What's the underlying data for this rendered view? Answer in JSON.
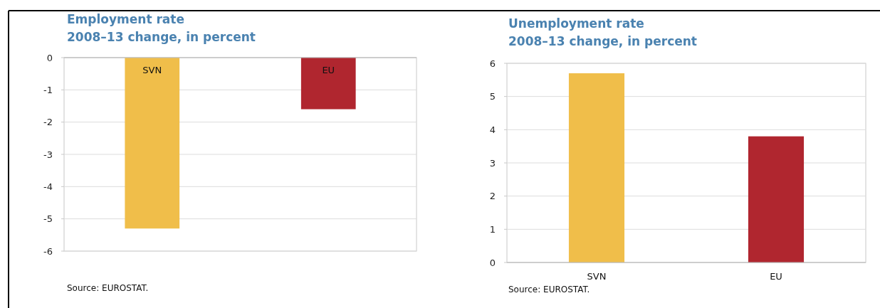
{
  "chart_data": [
    {
      "type": "bar",
      "title": "Employment rate\n2008–13 change, in percent",
      "categories": [
        "SVN",
        "EU"
      ],
      "values": [
        -5.3,
        -1.6
      ],
      "colors": [
        "#f0be4a",
        "#b0262f"
      ],
      "ylim": [
        -6,
        0
      ],
      "yticks": [
        0,
        -1,
        -2,
        -3,
        -4,
        -5,
        -6
      ],
      "grid": "y",
      "annotations": [
        "Source: EUROSTAT."
      ]
    },
    {
      "type": "bar",
      "title": "Unemployment rate\n2008–13 change, in percent",
      "categories": [
        "SVN",
        "EU"
      ],
      "values": [
        5.7,
        3.8
      ],
      "colors": [
        "#f0be4a",
        "#b0262f"
      ],
      "ylim": [
        0,
        6
      ],
      "yticks": [
        0,
        1,
        2,
        3,
        4,
        5,
        6
      ],
      "grid": "y",
      "annotations": [
        "Source: EUROSTAT."
      ]
    }
  ]
}
